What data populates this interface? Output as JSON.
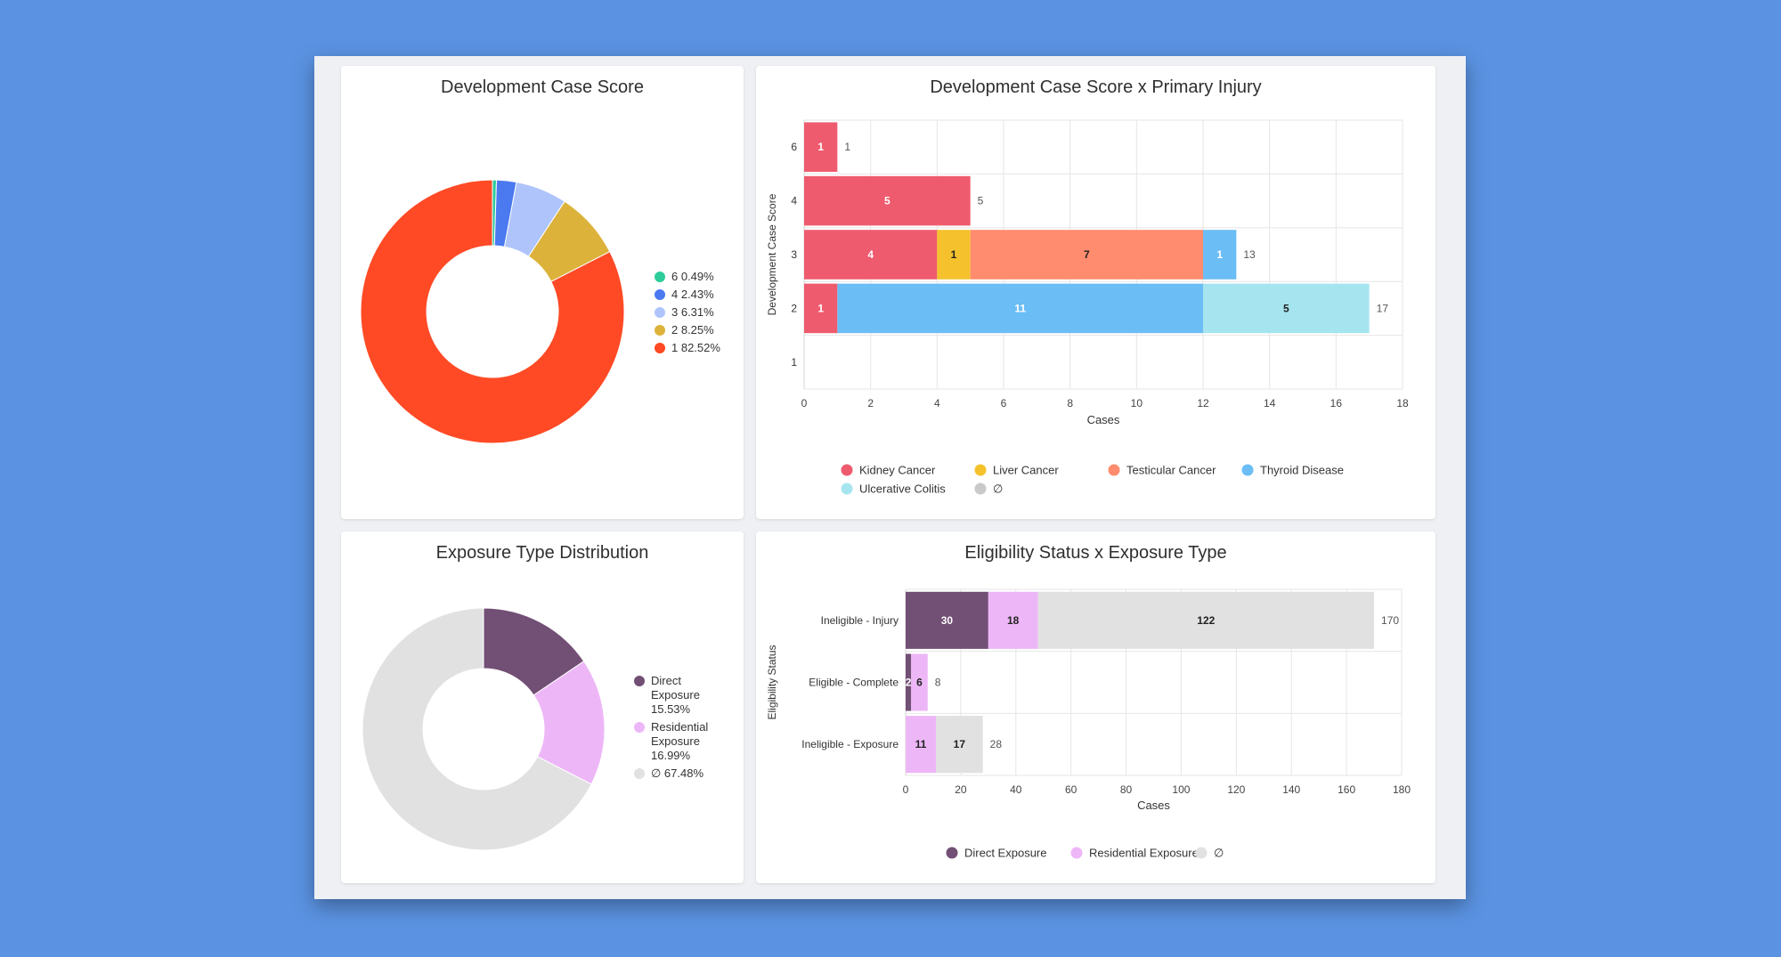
{
  "colors": {
    "page_background": "#5b93e2",
    "card_background": "#ffffff"
  },
  "chart_data": [
    {
      "id": "dev-score-donut",
      "type": "pie",
      "title": "Development Case Score",
      "slices": [
        {
          "label": "6",
          "pct_label": "0.49%",
          "value": 0.49,
          "color": "#2ecc9a"
        },
        {
          "label": "4",
          "pct_label": "2.43%",
          "value": 2.43,
          "color": "#4a79f0"
        },
        {
          "label": "3",
          "pct_label": "6.31%",
          "value": 6.31,
          "color": "#aec4fb"
        },
        {
          "label": "2",
          "pct_label": "8.25%",
          "value": 8.25,
          "color": "#dcb23a"
        },
        {
          "label": "1",
          "pct_label": "82.52%",
          "value": 82.52,
          "color": "#ff4a25"
        }
      ],
      "legend_position": "right"
    },
    {
      "id": "dev-score-injury-bar",
      "type": "bar",
      "orientation": "horizontal",
      "stacked": true,
      "title": "Development Case Score x Primary Injury",
      "xlabel": "Cases",
      "ylabel": "Development Case Score",
      "xlim": [
        0,
        18
      ],
      "xticks": [
        "0",
        "2",
        "4",
        "6",
        "8",
        "10",
        "12",
        "14",
        "16",
        "18"
      ],
      "categories": [
        "6",
        "4",
        "3",
        "2",
        "1"
      ],
      "series": [
        {
          "name": "Kidney Cancer",
          "color": "#ef5b6e",
          "values": [
            1,
            5,
            4,
            1,
            0
          ]
        },
        {
          "name": "Liver Cancer",
          "color": "#f5c22e",
          "values": [
            0,
            0,
            1,
            0,
            0
          ]
        },
        {
          "name": "Testicular Cancer",
          "color": "#ff8c6e",
          "values": [
            0,
            0,
            7,
            0,
            0
          ]
        },
        {
          "name": "Thyroid Disease",
          "color": "#6bbdf5",
          "values": [
            0,
            0,
            1,
            11,
            0
          ]
        },
        {
          "name": "Ulcerative Colitis",
          "color": "#a6e5f0",
          "values": [
            0,
            0,
            0,
            5,
            0
          ]
        },
        {
          "name": "∅",
          "color": "#c9c9c9",
          "values": [
            0,
            0,
            0,
            0,
            0
          ]
        }
      ],
      "totals": [
        "1",
        "5",
        "13",
        "17",
        ""
      ],
      "legend_position": "bottom"
    },
    {
      "id": "exposure-donut",
      "type": "pie",
      "title": "Exposure Type Distribution",
      "slices": [
        {
          "label": "Direct Exposure",
          "pct_label": "15.53%",
          "value": 15.53,
          "color": "#724f75"
        },
        {
          "label": "Residential Exposure",
          "pct_label": "16.99%",
          "value": 16.99,
          "color": "#edb7f7"
        },
        {
          "label": "∅",
          "pct_label": "67.48%",
          "value": 67.48,
          "color": "#e1e1e1"
        }
      ],
      "legend_position": "right"
    },
    {
      "id": "eligibility-bar",
      "type": "bar",
      "orientation": "horizontal",
      "stacked": true,
      "title": "Eligibility Status x Exposure Type",
      "xlabel": "Cases",
      "ylabel": "Eligibility Status",
      "xlim": [
        0,
        180
      ],
      "xticks": [
        "0",
        "20",
        "40",
        "60",
        "80",
        "100",
        "120",
        "140",
        "160",
        "180"
      ],
      "categories": [
        "Ineligible - Injury",
        "Eligible - Complete",
        "Ineligible - Exposure"
      ],
      "series": [
        {
          "name": "Direct Exposure",
          "color": "#724f75",
          "values": [
            30,
            2,
            0
          ]
        },
        {
          "name": "Residential Exposure",
          "color": "#edb7f7",
          "values": [
            18,
            6,
            11
          ]
        },
        {
          "name": "∅",
          "color": "#e1e1e1",
          "values": [
            122,
            0,
            17
          ]
        }
      ],
      "totals": [
        "170",
        "8",
        "28"
      ],
      "legend_position": "bottom"
    }
  ]
}
